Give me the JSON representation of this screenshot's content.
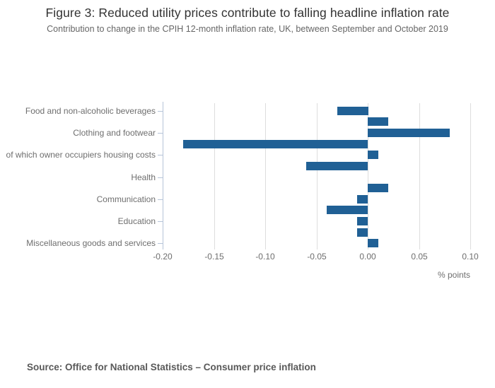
{
  "figure": {
    "title": "Figure 3: Reduced utility prices contribute to falling headline inflation rate",
    "subtitle": "Contribution to change in the CPIH 12-month inflation rate, UK, between September and October 2019",
    "source": "Source: Office for National Statistics – Consumer price inflation"
  },
  "chart_data": {
    "type": "bar",
    "orientation": "horizontal",
    "title": "Figure 3: Reduced utility prices contribute to falling headline inflation rate",
    "subtitle": "Contribution to change in the CPIH 12-month inflation rate, UK, between September and October 2019",
    "xlabel": "% points",
    "xlim": [
      -0.2,
      0.1
    ],
    "xticks": [
      -0.2,
      -0.15,
      -0.1,
      -0.05,
      0.0,
      0.05,
      0.1
    ],
    "xtick_labels": [
      "-0.20",
      "-0.15",
      "-0.10",
      "-0.05",
      "0.00",
      "0.05",
      "0.10"
    ],
    "grid": true,
    "legend": "none",
    "bar_color": "#206095",
    "axis_line_color": "#b6c4d8",
    "gridline_color": "#dddddd",
    "categories": [
      "Food and non-alcoholic beverages",
      "",
      "Clothing and footwear",
      "",
      "of which owner occupiers housing costs",
      "",
      "Health",
      "",
      "Communication",
      "",
      "Education",
      "",
      "Miscellaneous goods and services"
    ],
    "values": [
      -0.03,
      0.02,
      0.08,
      -0.18,
      0.01,
      -0.06,
      0.0,
      0.02,
      -0.01,
      -0.04,
      -0.01,
      -0.01,
      0.01
    ]
  }
}
